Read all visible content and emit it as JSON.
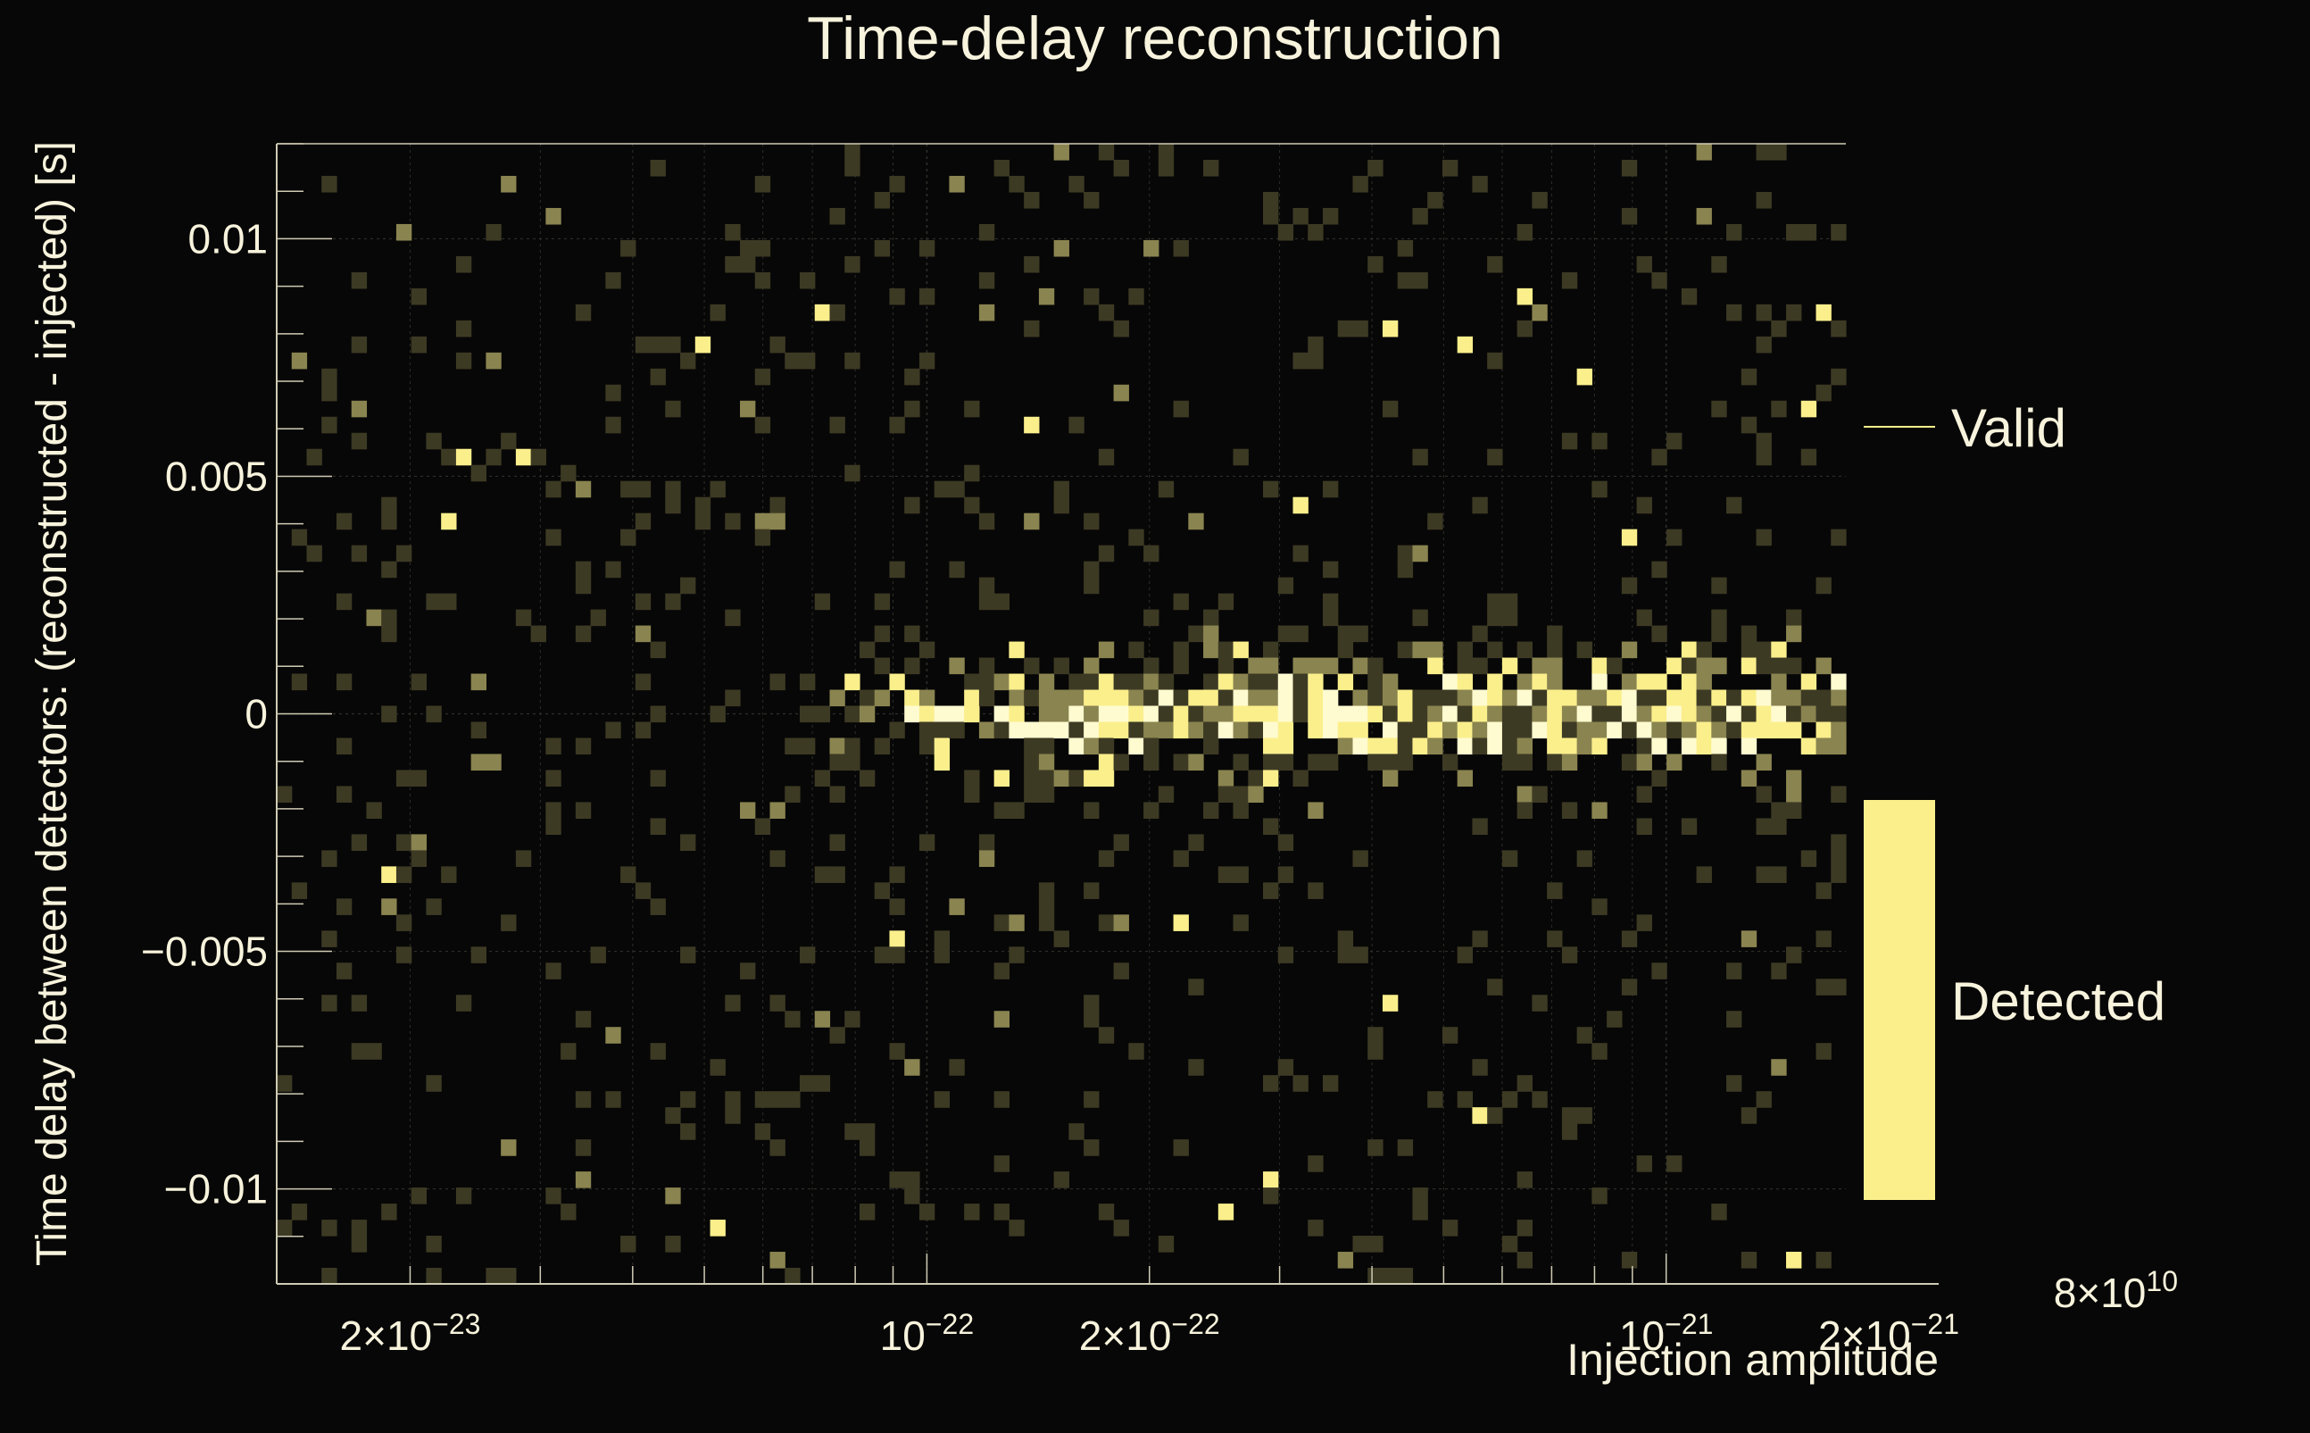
{
  "chart_data": {
    "type": "heatmap",
    "title": "Time-delay reconstruction",
    "xlabel": "Injection amplitude",
    "ylabel": "Time delay between detectors: (reconstructed - injected) [s]",
    "x_scale": "log",
    "xlim": [
      1.32e-23,
      1.75e-21
    ],
    "ylim": [
      -0.012,
      0.012
    ],
    "grid": true,
    "x_ticks": [
      {
        "value": 2e-23,
        "mantissa": "2",
        "exp": "23",
        "neg": true
      },
      {
        "value": 1e-22,
        "mantissa": "",
        "exp": "22",
        "neg": true
      },
      {
        "value": 2e-22,
        "mantissa": "2",
        "exp": "22",
        "neg": true
      },
      {
        "value": 1e-21,
        "mantissa": "",
        "exp": "21",
        "neg": true
      },
      {
        "value": 2e-21,
        "mantissa": "2",
        "exp": "21",
        "neg": true
      }
    ],
    "y_ticks": [
      {
        "value": 0.01,
        "label": "0.01"
      },
      {
        "value": 0.005,
        "label": "0.005"
      },
      {
        "value": 0,
        "label": "0"
      },
      {
        "value": -0.005,
        "label": "−0.005"
      },
      {
        "value": -0.01,
        "label": "−0.01"
      }
    ],
    "cutoff_tick": {
      "mantissa": "8",
      "exp": "10"
    },
    "legend": {
      "placement": "right",
      "entries": [
        {
          "label": "Valid",
          "marker": "line"
        },
        {
          "label": "Detected",
          "marker": "box"
        }
      ]
    },
    "bins": {
      "x_count": 105,
      "y_count": 71
    },
    "band": {
      "description_values": "concentration of detected counts",
      "delay_center": 0,
      "delay_spread": 0.0008,
      "amplitude_start": 8e-23
    },
    "colors": {
      "background": "#070707",
      "axis": "#cfcbb4",
      "grid": "#2e2e2a",
      "text": "#f7f3dc",
      "low": "#3d3a24",
      "mid": "#8a8450",
      "high": "#fbef8c",
      "peak": "#fffbd0",
      "legend_box": "#fbef8c"
    }
  }
}
